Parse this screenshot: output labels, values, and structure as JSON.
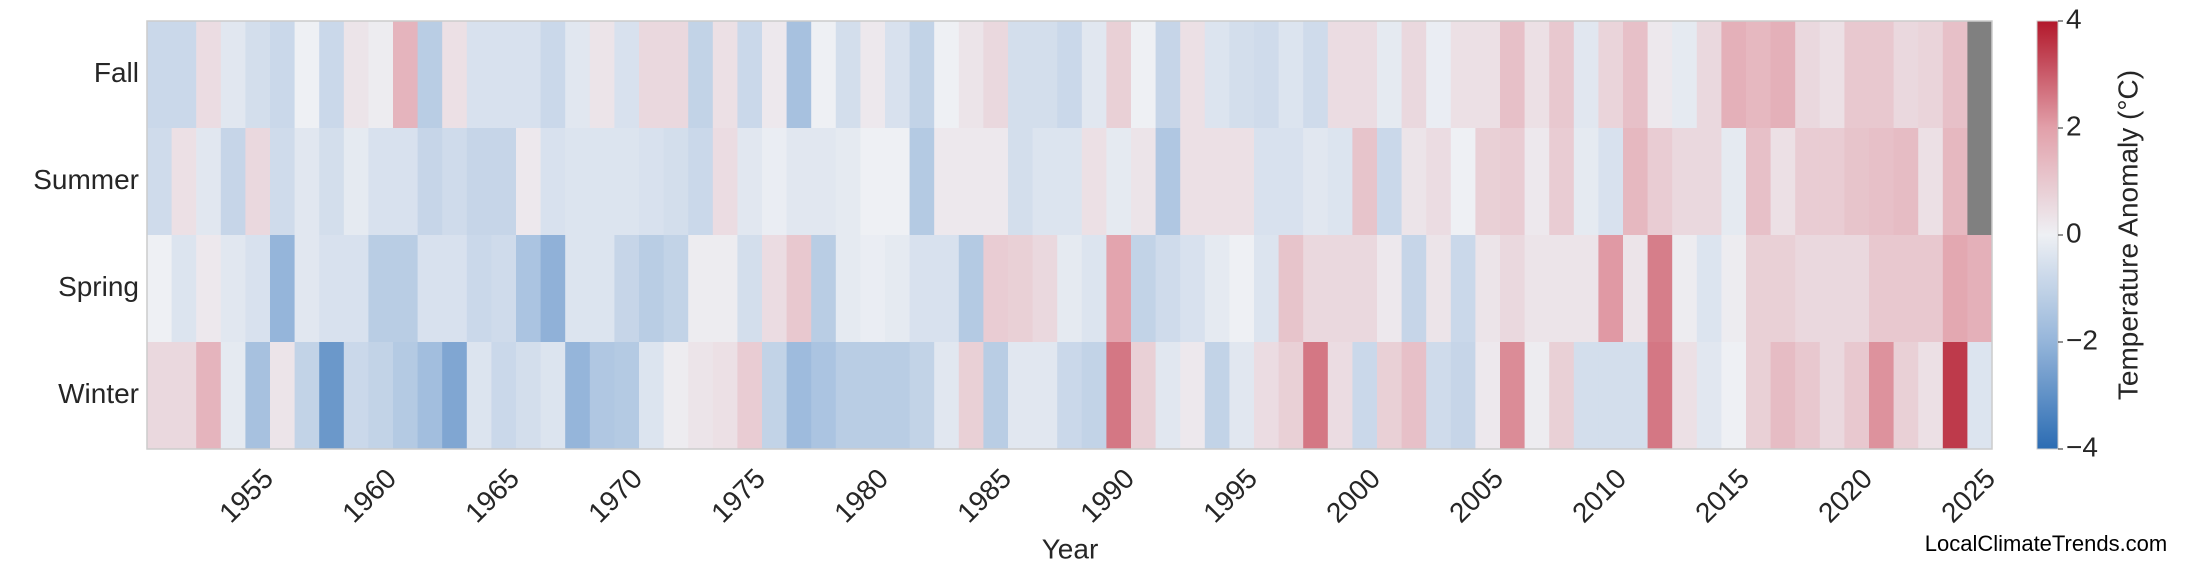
{
  "chart_data": {
    "type": "heatmap",
    "xlabel": "Year",
    "colorbar_label": "Temperature Anomaly (°C)",
    "watermark": "LocalClimateTrends.com",
    "rows": [
      "Fall",
      "Summer",
      "Spring",
      "Winter"
    ],
    "x": [
      1951,
      1952,
      1953,
      1954,
      1955,
      1956,
      1957,
      1958,
      1959,
      1960,
      1961,
      1962,
      1963,
      1964,
      1965,
      1966,
      1967,
      1968,
      1969,
      1970,
      1971,
      1972,
      1973,
      1974,
      1975,
      1976,
      1977,
      1978,
      1979,
      1980,
      1981,
      1982,
      1983,
      1984,
      1985,
      1986,
      1987,
      1988,
      1989,
      1990,
      1991,
      1992,
      1993,
      1994,
      1995,
      1996,
      1997,
      1998,
      1999,
      2000,
      2001,
      2002,
      2003,
      2004,
      2005,
      2006,
      2007,
      2008,
      2009,
      2010,
      2011,
      2012,
      2013,
      2014,
      2015,
      2016,
      2017,
      2018,
      2019,
      2020,
      2021,
      2022,
      2023,
      2024,
      2025
    ],
    "values": [
      [
        -0.8,
        -0.8,
        0.5,
        -0.3,
        -0.6,
        -0.8,
        0.0,
        -0.8,
        0.3,
        0.1,
        1.5,
        -1.2,
        0.4,
        -0.5,
        -0.5,
        -0.5,
        -0.8,
        -0.3,
        0.3,
        -0.5,
        0.6,
        0.6,
        -1.0,
        0.4,
        -0.8,
        0.2,
        -1.6,
        0.0,
        -0.6,
        0.2,
        -0.5,
        -1.0,
        0.0,
        0.3,
        0.6,
        -0.6,
        -0.6,
        -0.8,
        -0.3,
        0.8,
        0.0,
        -0.9,
        0.4,
        -0.4,
        -0.6,
        -0.7,
        -0.4,
        -0.7,
        0.5,
        0.5,
        -0.2,
        0.6,
        -0.1,
        0.4,
        0.4,
        1.2,
        0.4,
        1.0,
        -0.3,
        0.7,
        1.2,
        0.2,
        -0.2,
        0.6,
        1.6,
        1.4,
        1.6,
        0.6,
        0.4,
        1.0,
        1.0,
        0.6,
        0.7,
        1.2,
        null
      ],
      [
        -0.7,
        0.4,
        -0.3,
        -0.9,
        0.6,
        -0.7,
        -0.3,
        -0.6,
        -0.2,
        -0.5,
        -0.5,
        -0.9,
        -0.7,
        -0.9,
        -0.9,
        0.2,
        -0.5,
        -0.4,
        -0.4,
        -0.4,
        -0.5,
        -0.6,
        -0.8,
        0.5,
        -0.3,
        -0.1,
        -0.3,
        -0.3,
        -0.2,
        0.0,
        0.0,
        -1.3,
        0.2,
        0.2,
        0.2,
        -0.6,
        -0.4,
        -0.4,
        0.4,
        -0.2,
        0.3,
        -1.4,
        0.4,
        0.4,
        0.4,
        -0.5,
        -0.5,
        -0.3,
        -0.4,
        1.1,
        -0.8,
        0.3,
        0.5,
        0.0,
        0.8,
        0.9,
        0.2,
        0.9,
        -0.2,
        -0.5,
        1.4,
        0.9,
        0.6,
        0.6,
        -0.2,
        1.2,
        0.4,
        0.9,
        0.9,
        1.1,
        1.2,
        1.3,
        0.4,
        1.4,
        null
      ],
      [
        0.0,
        -0.4,
        0.2,
        -0.3,
        -0.5,
        -2.0,
        -0.3,
        -0.5,
        -0.5,
        -1.2,
        -1.2,
        -0.5,
        -0.5,
        -0.8,
        -0.7,
        -1.5,
        -2.1,
        -0.4,
        -0.4,
        -0.9,
        -1.2,
        -1.0,
        0.1,
        0.1,
        -0.6,
        0.5,
        1.0,
        -1.2,
        -0.2,
        -0.1,
        -0.2,
        -0.5,
        -0.5,
        -1.3,
        0.9,
        0.8,
        0.6,
        -0.2,
        -0.4,
        1.9,
        -1.0,
        -0.7,
        -0.5,
        -0.2,
        0.0,
        -0.4,
        1.1,
        0.6,
        0.6,
        0.6,
        0.2,
        -0.9,
        0.3,
        -0.8,
        0.3,
        0.6,
        0.3,
        0.3,
        0.3,
        2.1,
        0.3,
        2.5,
        0.1,
        -0.4,
        0.1,
        0.8,
        0.8,
        0.6,
        0.6,
        0.6,
        1.0,
        1.0,
        1.0,
        1.8,
        1.6
      ],
      [
        0.6,
        0.6,
        1.5,
        -0.2,
        -1.6,
        0.3,
        -1.0,
        -2.8,
        -0.8,
        -1.0,
        -1.3,
        -1.7,
        -2.4,
        -0.4,
        -0.8,
        -0.6,
        -0.4,
        -2.0,
        -1.4,
        -1.3,
        -0.4,
        0.1,
        0.3,
        0.4,
        0.9,
        -1.0,
        -1.8,
        -1.5,
        -1.2,
        -1.2,
        -1.2,
        -1.0,
        -0.3,
        0.8,
        -1.2,
        -0.3,
        -0.3,
        -0.8,
        -1.0,
        2.6,
        0.8,
        -0.3,
        0.2,
        -1.0,
        -0.3,
        0.5,
        0.8,
        2.6,
        0.5,
        -0.8,
        0.8,
        1.2,
        -0.7,
        -0.9,
        0.2,
        2.3,
        0.1,
        0.8,
        -0.6,
        -0.6,
        -0.6,
        2.6,
        0.4,
        -0.3,
        0.0,
        0.8,
        1.3,
        1.0,
        0.6,
        1.0,
        2.2,
        0.8,
        0.4,
        3.5,
        -0.4
      ]
    ],
    "xlim": [
      1950.5,
      2025.5
    ],
    "xticks": [
      1955,
      1960,
      1965,
      1970,
      1975,
      1980,
      1985,
      1990,
      1995,
      2000,
      2005,
      2010,
      2015,
      2020,
      2025
    ],
    "clim": [
      -4,
      4
    ],
    "cticks": [
      {
        "value": -4,
        "label": "−4"
      },
      {
        "value": -2,
        "label": "−2"
      },
      0,
      2,
      4
    ],
    "colormap": [
      "#2b6cb3",
      "#95b5da",
      "#eef0f4",
      "#e2a0aa",
      "#b2182b"
    ],
    "missing_color": "#808080"
  }
}
